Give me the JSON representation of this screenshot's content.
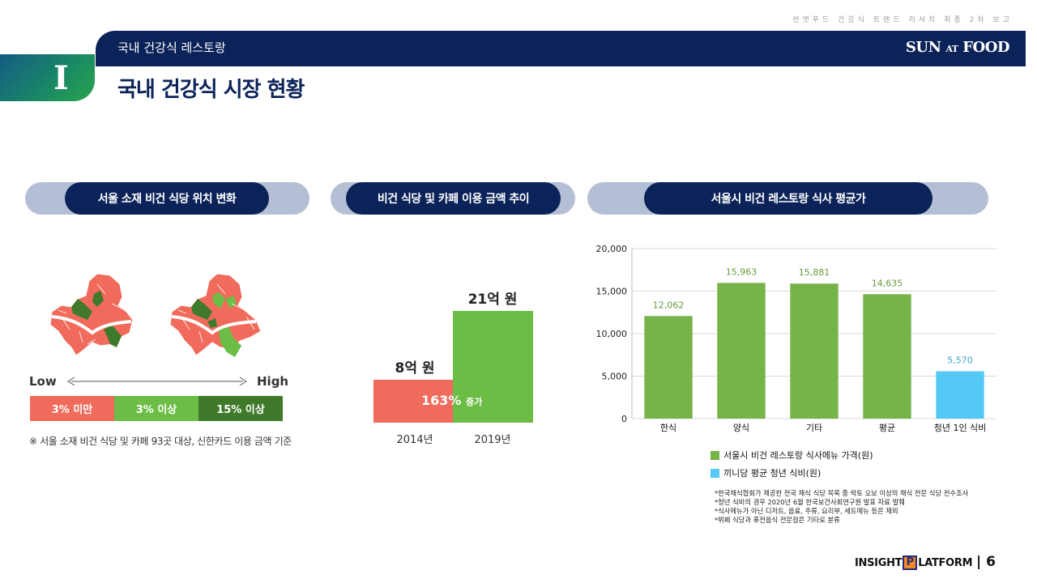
{
  "header": {
    "top_note": "썬앳푸드 건강식 트렌드 리서치 최종 2차 보고",
    "section_subtitle": "국내 건강식 레스토랑",
    "brand_sun": "SUN",
    "brand_at": "AT",
    "brand_food": "FOOD",
    "section_numeral": "I",
    "page_title": "국내 건강식 시장 현황"
  },
  "sections": [
    {
      "label": "서울 소재 비건 식당 위치 변화"
    },
    {
      "label": "비건 식당 및 카페 이용 금액 추이"
    },
    {
      "label": "서울시 비건 레스토랑 식사 평균가"
    }
  ],
  "map_panel": {
    "legend_low": "Low",
    "legend_high": "High",
    "segments": [
      {
        "label": "3% 미만",
        "color": "#f06b5b"
      },
      {
        "label": "3% 이상",
        "color": "#6bbd45"
      },
      {
        "label": "15% 이상",
        "color": "#3f7a2a"
      }
    ],
    "note": "※ 서울 소재 비건 식당 및 카페 93곳 대상, 신한카드 이용 금액 기준"
  },
  "spending_panel": {
    "value_2014": "8억 원",
    "value_2019": "21억 원",
    "growth_pct": "163%",
    "growth_word": "증가",
    "year_2014": "2014년",
    "year_2019": "2019년"
  },
  "chart_data": {
    "type": "bar",
    "categories": [
      "한식",
      "양식",
      "기타",
      "평균",
      "청년 1인 식비"
    ],
    "values": [
      12062,
      15963,
      15881,
      14635,
      5570
    ],
    "value_labels": [
      "12,062",
      "15,963",
      "15,881",
      "14,635",
      "5,570"
    ],
    "bar_colors": [
      "#76b349",
      "#76b349",
      "#76b349",
      "#76b349",
      "#55c8f5"
    ],
    "ylim": [
      0,
      20000
    ],
    "yticks": [
      0,
      5000,
      10000,
      15000,
      20000
    ],
    "ytick_labels": [
      "0",
      "5,000",
      "10,000",
      "15,000",
      "20,000"
    ],
    "grid": true,
    "legend": [
      {
        "label": "서울시 비건 레스토랑 식사메뉴 가격(원)",
        "color": "#76b349"
      },
      {
        "label": "끼니당 평균 청년 식비(원)",
        "color": "#55c8f5"
      }
    ],
    "legend_position": "bottom"
  },
  "chart_notes": [
    "*한국채식협회가 제공한 전국 채식 식당 목록 중 락토 오보 이상의 채식 전문 식당 전수조사",
    "*청년 식비의 경우 2020년 6월 한국보건사회연구원 발표 자료 발췌",
    "*식사메뉴가 아닌 디저트, 음료, 주류, 요리부, 세트메뉴 등은 제외",
    "*뷔페 식당과 퓨전음식 전문점은 기타로 분류"
  ],
  "footer": {
    "logo_left": "INSIGHT",
    "logo_p": "P",
    "logo_right": "LATFORM",
    "page_number": "| 6"
  }
}
